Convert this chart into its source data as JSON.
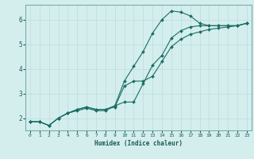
{
  "xlabel": "Humidex (Indice chaleur)",
  "ylabel": "",
  "bg_color": "#d4eeee",
  "grid_color": "#c0dede",
  "line_color": "#1a6e64",
  "xlim": [
    -0.5,
    23.5
  ],
  "ylim": [
    1.5,
    6.6
  ],
  "x_ticks": [
    0,
    1,
    2,
    3,
    4,
    5,
    6,
    7,
    8,
    9,
    10,
    11,
    12,
    13,
    14,
    15,
    16,
    17,
    18,
    19,
    20,
    21,
    22,
    23
  ],
  "y_ticks": [
    2,
    3,
    4,
    5,
    6
  ],
  "series": [
    {
      "x": [
        0,
        1,
        2,
        3,
        4,
        5,
        6,
        7,
        8,
        9,
        10,
        11,
        12,
        13,
        14,
        15,
        16,
        17,
        18,
        19,
        20,
        21,
        22,
        23
      ],
      "y": [
        1.85,
        1.85,
        1.7,
        2.0,
        2.2,
        2.3,
        2.4,
        2.3,
        2.3,
        2.5,
        3.5,
        4.1,
        4.7,
        5.45,
        6.0,
        6.35,
        6.3,
        6.15,
        5.85,
        5.75,
        5.75,
        5.75,
        5.75,
        5.85
      ]
    },
    {
      "x": [
        0,
        1,
        2,
        3,
        4,
        5,
        6,
        7,
        8,
        9,
        10,
        11,
        12,
        13,
        14,
        15,
        16,
        17,
        18,
        19,
        20,
        21,
        22,
        23
      ],
      "y": [
        1.85,
        1.85,
        1.7,
        2.0,
        2.2,
        2.35,
        2.45,
        2.35,
        2.35,
        2.45,
        3.3,
        3.5,
        3.5,
        3.7,
        4.3,
        4.9,
        5.2,
        5.4,
        5.5,
        5.6,
        5.65,
        5.7,
        5.75,
        5.85
      ]
    },
    {
      "x": [
        0,
        1,
        2,
        3,
        4,
        5,
        6,
        7,
        8,
        9,
        10,
        11,
        12,
        13,
        14,
        15,
        16,
        17,
        18,
        19,
        20,
        21,
        22,
        23
      ],
      "y": [
        1.85,
        1.85,
        1.7,
        2.0,
        2.2,
        2.35,
        2.45,
        2.35,
        2.35,
        2.5,
        2.65,
        2.65,
        3.4,
        4.15,
        4.55,
        5.25,
        5.55,
        5.7,
        5.75,
        5.75,
        5.75,
        5.75,
        5.75,
        5.85
      ]
    }
  ]
}
